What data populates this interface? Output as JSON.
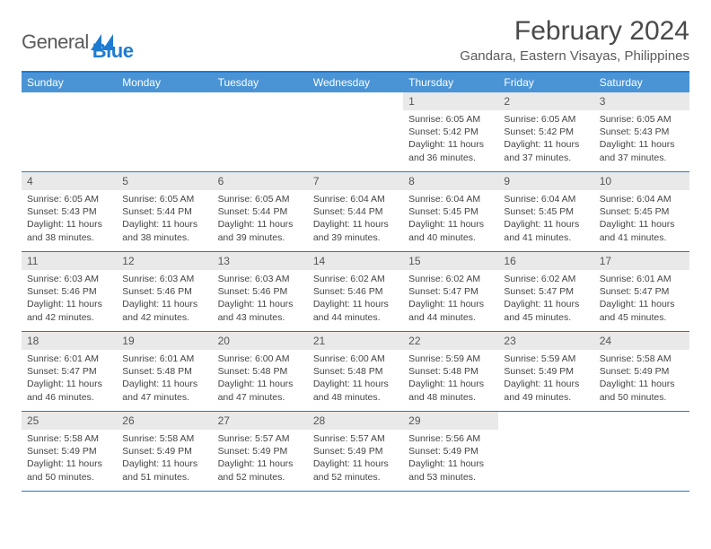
{
  "brand": {
    "general": "General",
    "blue": "Blue"
  },
  "title": "February 2024",
  "location": "Gandara, Eastern Visayas, Philippines",
  "colors": {
    "brand_blue": "#1f7bd1",
    "header_blue": "#4a94d6",
    "day_bg": "#e9e9e9",
    "text": "#444444",
    "title_text": "#4a4a4a"
  },
  "day_names": [
    "Sunday",
    "Monday",
    "Tuesday",
    "Wednesday",
    "Thursday",
    "Friday",
    "Saturday"
  ],
  "weeks": [
    [
      null,
      null,
      null,
      null,
      {
        "n": "1",
        "sr": "6:05 AM",
        "ss": "5:42 PM",
        "dl": "11 hours and 36 minutes."
      },
      {
        "n": "2",
        "sr": "6:05 AM",
        "ss": "5:42 PM",
        "dl": "11 hours and 37 minutes."
      },
      {
        "n": "3",
        "sr": "6:05 AM",
        "ss": "5:43 PM",
        "dl": "11 hours and 37 minutes."
      }
    ],
    [
      {
        "n": "4",
        "sr": "6:05 AM",
        "ss": "5:43 PM",
        "dl": "11 hours and 38 minutes."
      },
      {
        "n": "5",
        "sr": "6:05 AM",
        "ss": "5:44 PM",
        "dl": "11 hours and 38 minutes."
      },
      {
        "n": "6",
        "sr": "6:05 AM",
        "ss": "5:44 PM",
        "dl": "11 hours and 39 minutes."
      },
      {
        "n": "7",
        "sr": "6:04 AM",
        "ss": "5:44 PM",
        "dl": "11 hours and 39 minutes."
      },
      {
        "n": "8",
        "sr": "6:04 AM",
        "ss": "5:45 PM",
        "dl": "11 hours and 40 minutes."
      },
      {
        "n": "9",
        "sr": "6:04 AM",
        "ss": "5:45 PM",
        "dl": "11 hours and 41 minutes."
      },
      {
        "n": "10",
        "sr": "6:04 AM",
        "ss": "5:45 PM",
        "dl": "11 hours and 41 minutes."
      }
    ],
    [
      {
        "n": "11",
        "sr": "6:03 AM",
        "ss": "5:46 PM",
        "dl": "11 hours and 42 minutes."
      },
      {
        "n": "12",
        "sr": "6:03 AM",
        "ss": "5:46 PM",
        "dl": "11 hours and 42 minutes."
      },
      {
        "n": "13",
        "sr": "6:03 AM",
        "ss": "5:46 PM",
        "dl": "11 hours and 43 minutes."
      },
      {
        "n": "14",
        "sr": "6:02 AM",
        "ss": "5:46 PM",
        "dl": "11 hours and 44 minutes."
      },
      {
        "n": "15",
        "sr": "6:02 AM",
        "ss": "5:47 PM",
        "dl": "11 hours and 44 minutes."
      },
      {
        "n": "16",
        "sr": "6:02 AM",
        "ss": "5:47 PM",
        "dl": "11 hours and 45 minutes."
      },
      {
        "n": "17",
        "sr": "6:01 AM",
        "ss": "5:47 PM",
        "dl": "11 hours and 45 minutes."
      }
    ],
    [
      {
        "n": "18",
        "sr": "6:01 AM",
        "ss": "5:47 PM",
        "dl": "11 hours and 46 minutes."
      },
      {
        "n": "19",
        "sr": "6:01 AM",
        "ss": "5:48 PM",
        "dl": "11 hours and 47 minutes."
      },
      {
        "n": "20",
        "sr": "6:00 AM",
        "ss": "5:48 PM",
        "dl": "11 hours and 47 minutes."
      },
      {
        "n": "21",
        "sr": "6:00 AM",
        "ss": "5:48 PM",
        "dl": "11 hours and 48 minutes."
      },
      {
        "n": "22",
        "sr": "5:59 AM",
        "ss": "5:48 PM",
        "dl": "11 hours and 48 minutes."
      },
      {
        "n": "23",
        "sr": "5:59 AM",
        "ss": "5:49 PM",
        "dl": "11 hours and 49 minutes."
      },
      {
        "n": "24",
        "sr": "5:58 AM",
        "ss": "5:49 PM",
        "dl": "11 hours and 50 minutes."
      }
    ],
    [
      {
        "n": "25",
        "sr": "5:58 AM",
        "ss": "5:49 PM",
        "dl": "11 hours and 50 minutes."
      },
      {
        "n": "26",
        "sr": "5:58 AM",
        "ss": "5:49 PM",
        "dl": "11 hours and 51 minutes."
      },
      {
        "n": "27",
        "sr": "5:57 AM",
        "ss": "5:49 PM",
        "dl": "11 hours and 52 minutes."
      },
      {
        "n": "28",
        "sr": "5:57 AM",
        "ss": "5:49 PM",
        "dl": "11 hours and 52 minutes."
      },
      {
        "n": "29",
        "sr": "5:56 AM",
        "ss": "5:49 PM",
        "dl": "11 hours and 53 minutes."
      },
      null,
      null
    ]
  ],
  "labels": {
    "sunrise": "Sunrise:",
    "sunset": "Sunset:",
    "daylight": "Daylight:"
  }
}
